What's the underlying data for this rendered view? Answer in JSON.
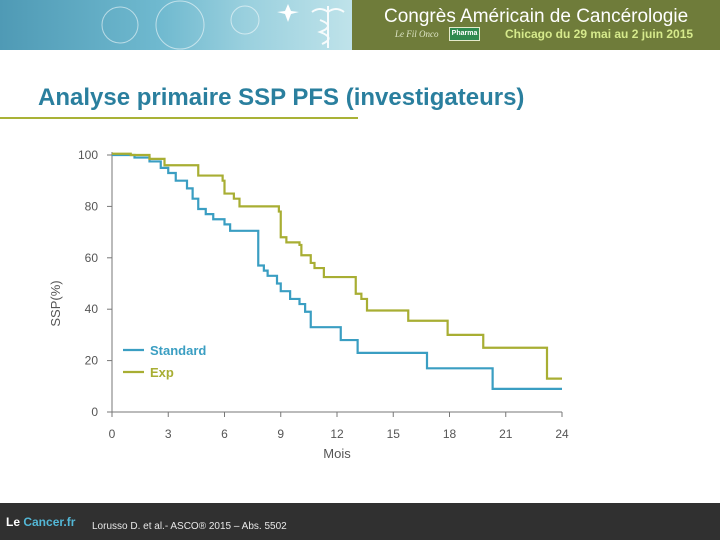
{
  "header": {
    "congress_title": "Congrès Américain de Cancérologie",
    "congress_dates": "Chicago du 29 mai au 2 juin 2015",
    "logo_text": "Le Fil Onco",
    "pharma_badge": "Pharma",
    "colors": {
      "left_gradient": "#6fb9cf",
      "right_panel": "#6f7c3a",
      "dates": "#d6ea8c"
    }
  },
  "slide": {
    "title": "Analyse primaire SSP PFS (investigateurs)",
    "title_color": "#2a7f9e",
    "rule_color": "#a9b236"
  },
  "chart_data": {
    "type": "line",
    "step": true,
    "xlabel": "Mois",
    "ylabel": "SSP(%)",
    "xlim": [
      0,
      24
    ],
    "ylim": [
      0,
      100
    ],
    "xticks": [
      0,
      3,
      6,
      9,
      12,
      15,
      18,
      21,
      24
    ],
    "yticks": [
      0,
      20,
      40,
      60,
      80,
      100
    ],
    "grid": false,
    "legend_position": "bottom-left",
    "series": [
      {
        "name": "Standard",
        "color": "#3a9ec2",
        "points": [
          [
            0,
            100
          ],
          [
            1.2,
            99
          ],
          [
            2,
            97.5
          ],
          [
            2.6,
            95
          ],
          [
            3,
            93
          ],
          [
            3.4,
            90
          ],
          [
            4,
            87
          ],
          [
            4.3,
            83
          ],
          [
            4.6,
            79
          ],
          [
            5,
            77
          ],
          [
            5.4,
            75
          ],
          [
            6,
            73
          ],
          [
            6.3,
            70.5
          ],
          [
            7.8,
            70.5
          ],
          [
            7.8,
            57
          ],
          [
            8.1,
            55
          ],
          [
            8.3,
            53
          ],
          [
            8.8,
            50
          ],
          [
            9,
            47
          ],
          [
            9.5,
            44
          ],
          [
            10,
            42
          ],
          [
            10.3,
            39
          ],
          [
            10.6,
            33
          ],
          [
            12.2,
            33
          ],
          [
            12.2,
            28
          ],
          [
            13.1,
            28
          ],
          [
            13.1,
            23
          ],
          [
            16.8,
            23
          ],
          [
            16.8,
            17
          ],
          [
            20.3,
            17
          ],
          [
            20.3,
            9
          ],
          [
            24,
            9
          ]
        ]
      },
      {
        "name": "Exp",
        "color": "#a8ae33",
        "points": [
          [
            0,
            100.5
          ],
          [
            1,
            100
          ],
          [
            2,
            98.5
          ],
          [
            2.8,
            97
          ],
          [
            2.8,
            96
          ],
          [
            4.6,
            96
          ],
          [
            4.6,
            92
          ],
          [
            5.6,
            92
          ],
          [
            5.9,
            90
          ],
          [
            6,
            85
          ],
          [
            6.5,
            83
          ],
          [
            6.8,
            80
          ],
          [
            8.9,
            80
          ],
          [
            8.9,
            78
          ],
          [
            9,
            68
          ],
          [
            9.3,
            66
          ],
          [
            10,
            65
          ],
          [
            10.1,
            61
          ],
          [
            10.6,
            58
          ],
          [
            10.8,
            56
          ],
          [
            11.3,
            52.5
          ],
          [
            13,
            52.5
          ],
          [
            13,
            46
          ],
          [
            13.3,
            44
          ],
          [
            13.6,
            39.5
          ],
          [
            15.8,
            39.5
          ],
          [
            15.8,
            35.5
          ],
          [
            17.9,
            35.5
          ],
          [
            17.9,
            30
          ],
          [
            19.8,
            30
          ],
          [
            19.8,
            25
          ],
          [
            23.2,
            25
          ],
          [
            23.2,
            13
          ],
          [
            24,
            13
          ]
        ]
      }
    ]
  },
  "footer": {
    "logo_le": "Le ",
    "logo_cancer": "Cancer.fr",
    "citation": "Lorusso D. et al.- ASCO® 2015 – Abs. 5502"
  }
}
